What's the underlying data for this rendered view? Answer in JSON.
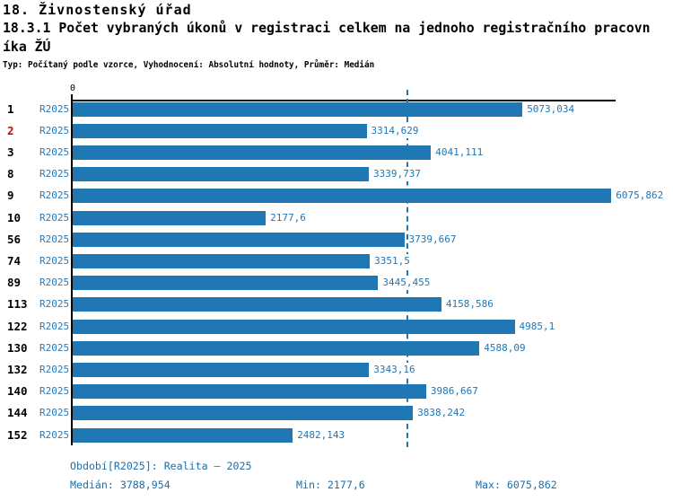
{
  "header": {
    "title_line1": "18. Živnostenský úřad",
    "title_line2": "18.3.1 Počet vybraných úkonů v registraci celkem na jednoho registračního pracovn",
    "title_line3": "íka ŽÚ",
    "meta": "Typ: Počítaný podle vzorce, Vyhodnocení: Absolutní hodnoty, Průměr: Medián"
  },
  "chart_data": {
    "type": "bar",
    "orientation": "horizontal",
    "title": "18.3.1 Počet vybraných úkonů v registraci celkem na jednoho registračního pracovníka ŽÚ",
    "axis_origin_label": "0",
    "xlim": [
      0,
      6160
    ],
    "grid": false,
    "series_label": "R2025",
    "categories": [
      "1",
      "2",
      "3",
      "8",
      "9",
      "10",
      "56",
      "74",
      "89",
      "113",
      "122",
      "130",
      "132",
      "140",
      "144",
      "152"
    ],
    "values": [
      5073.034,
      3314.629,
      4041.111,
      3339.737,
      6075.862,
      2177.6,
      3739.667,
      3351.5,
      3445.455,
      4158.586,
      4985.1,
      4588.09,
      3343.16,
      3986.667,
      3838.242,
      2482.143
    ],
    "value_labels": [
      "5073,034",
      "3314,629",
      "4041,111",
      "3339,737",
      "6075,862",
      "2177,6",
      "3739,667",
      "3351,5",
      "3445,455",
      "4158,586",
      "4985,1",
      "4588,09",
      "3343,16",
      "3986,667",
      "3838,242",
      "2482,143"
    ],
    "highlighted_category": "2",
    "highlight_color": "#dd0000",
    "bar_color": "#1f77b4",
    "median_line_value": 3788.954
  },
  "footer": {
    "period": "Období[R2025]: Realita – 2025",
    "median": "Medián: 3788,954",
    "min": "Min: 2177,6",
    "max": "Max: 6075,862"
  }
}
